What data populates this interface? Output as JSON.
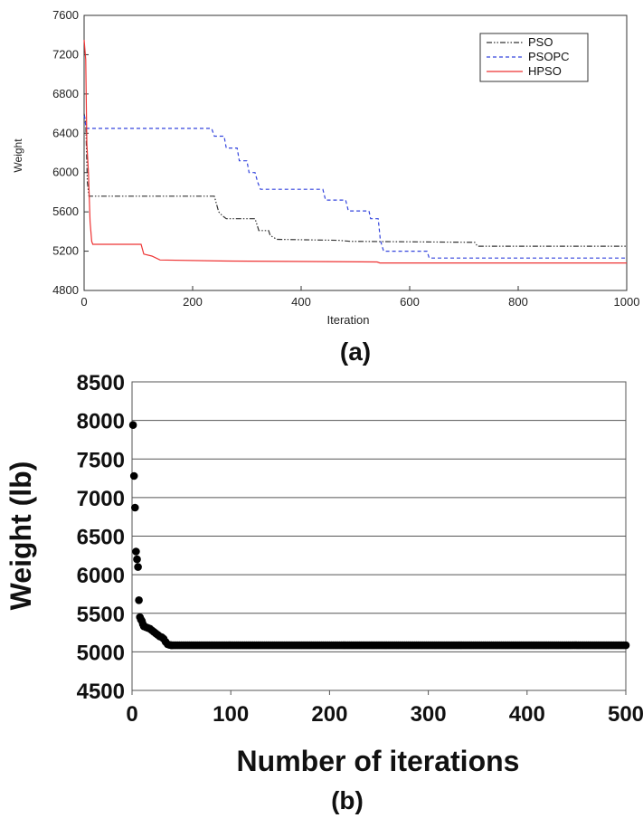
{
  "panels": [
    {
      "label": "(a)",
      "chart_data": {
        "type": "line",
        "title": "",
        "xlabel": "Iteration",
        "ylabel": "Weight",
        "xlim": [
          0,
          1000
        ],
        "ylim": [
          4800,
          7600
        ],
        "xticks": [
          0,
          200,
          400,
          600,
          800,
          1000
        ],
        "yticks": [
          4800,
          5200,
          5600,
          6000,
          6400,
          6800,
          7200,
          7600
        ],
        "grid": false,
        "legend_position": "top-right",
        "series": [
          {
            "name": "PSO",
            "color": "#333333",
            "dash": "dash-dot-dot",
            "points": [
              [
                0,
                6600
              ],
              [
                3,
                6500
              ],
              [
                6,
                5900
              ],
              [
                9,
                5760
              ],
              [
                240,
                5760
              ],
              [
                243,
                5700
              ],
              [
                248,
                5600
              ],
              [
                255,
                5560
              ],
              [
                262,
                5530
              ],
              [
                315,
                5530
              ],
              [
                318,
                5480
              ],
              [
                322,
                5410
              ],
              [
                340,
                5410
              ],
              [
                343,
                5360
              ],
              [
                355,
                5320
              ],
              [
                470,
                5310
              ],
              [
                490,
                5300
              ],
              [
                720,
                5290
              ],
              [
                725,
                5250
              ],
              [
                1000,
                5250
              ]
            ]
          },
          {
            "name": "PSOPC",
            "color": "#3344dd",
            "dash": "dash",
            "points": [
              [
                0,
                6580
              ],
              [
                4,
                6450
              ],
              [
                235,
                6450
              ],
              [
                240,
                6370
              ],
              [
                258,
                6370
              ],
              [
                262,
                6250
              ],
              [
                282,
                6250
              ],
              [
                286,
                6120
              ],
              [
                300,
                6120
              ],
              [
                304,
                6000
              ],
              [
                315,
                6000
              ],
              [
                320,
                5900
              ],
              [
                325,
                5830
              ],
              [
                440,
                5830
              ],
              [
                445,
                5720
              ],
              [
                482,
                5720
              ],
              [
                487,
                5610
              ],
              [
                525,
                5610
              ],
              [
                528,
                5530
              ],
              [
                542,
                5530
              ],
              [
                546,
                5310
              ],
              [
                552,
                5200
              ],
              [
                632,
                5200
              ],
              [
                636,
                5130
              ],
              [
                1000,
                5130
              ]
            ]
          },
          {
            "name": "HPSO",
            "color": "#ee3333",
            "dash": "solid",
            "points": [
              [
                0,
                7350
              ],
              [
                3,
                7150
              ],
              [
                5,
                6300
              ],
              [
                8,
                6000
              ],
              [
                11,
                5500
              ],
              [
                14,
                5300
              ],
              [
                16,
                5270
              ],
              [
                105,
                5270
              ],
              [
                110,
                5170
              ],
              [
                125,
                5150
              ],
              [
                140,
                5110
              ],
              [
                250,
                5100
              ],
              [
                540,
                5090
              ],
              [
                545,
                5080
              ],
              [
                1000,
                5080
              ]
            ]
          }
        ]
      }
    },
    {
      "label": "(b)",
      "chart_data": {
        "type": "scatter",
        "title": "",
        "xlabel": "Number of iterations",
        "ylabel": "Weight (lb)",
        "xlim": [
          0,
          500
        ],
        "ylim": [
          4500,
          8500
        ],
        "xticks": [
          0,
          100,
          200,
          300,
          400,
          500
        ],
        "yticks": [
          4500,
          5000,
          5500,
          6000,
          6500,
          7000,
          7500,
          8000,
          8500
        ],
        "grid": true,
        "series": [
          {
            "name": "",
            "color": "#000000",
            "points": [
              [
                1,
                7940
              ],
              [
                2,
                7280
              ],
              [
                3,
                6870
              ],
              [
                4,
                6300
              ],
              [
                5,
                6200
              ],
              [
                6,
                6100
              ],
              [
                7,
                5670
              ],
              [
                8,
                5450
              ],
              [
                9,
                5420
              ],
              [
                10,
                5400
              ],
              [
                11,
                5360
              ],
              [
                12,
                5330
              ],
              [
                14,
                5320
              ],
              [
                16,
                5310
              ],
              [
                18,
                5300
              ],
              [
                20,
                5280
              ],
              [
                22,
                5260
              ],
              [
                24,
                5240
              ],
              [
                26,
                5220
              ],
              [
                28,
                5200
              ],
              [
                30,
                5190
              ],
              [
                32,
                5170
              ],
              [
                34,
                5130
              ],
              [
                36,
                5100
              ],
              [
                38,
                5090
              ],
              [
                40,
                5085
              ]
            ],
            "plateau": {
              "from": 40,
              "to": 500,
              "value": 5085
            }
          }
        ]
      }
    }
  ]
}
